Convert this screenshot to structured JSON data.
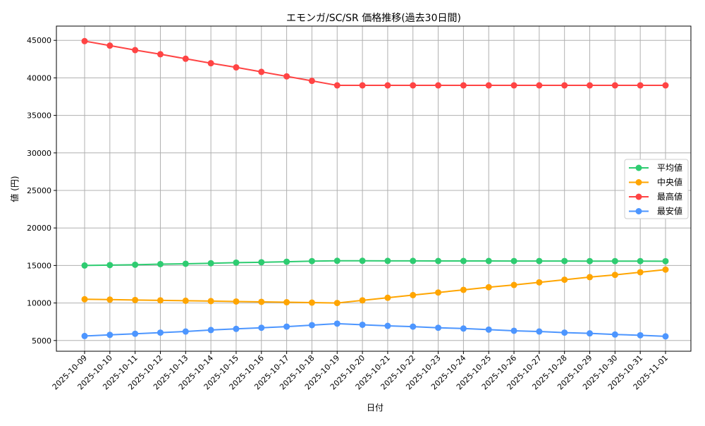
{
  "chart_data": {
    "type": "line",
    "title": "エモンガ/SC/SR 価格推移(過去30日間)",
    "xlabel": "日付",
    "ylabel": "値 (円)",
    "ylim": [
      3570,
      46900
    ],
    "yticks": [
      5000,
      10000,
      15000,
      20000,
      25000,
      30000,
      35000,
      40000,
      45000
    ],
    "grid": true,
    "legend_position": "center-right",
    "x": [
      "2025-10-09",
      "2025-10-10",
      "2025-10-11",
      "2025-10-12",
      "2025-10-13",
      "2025-10-14",
      "2025-10-15",
      "2025-10-16",
      "2025-10-17",
      "2025-10-18",
      "2025-10-19",
      "2025-10-20",
      "2025-10-21",
      "2025-10-22",
      "2025-10-23",
      "2025-10-24",
      "2025-10-25",
      "2025-10-26",
      "2025-10-27",
      "2025-10-28",
      "2025-10-29",
      "2025-10-30",
      "2025-10-31",
      "2025-11-01"
    ],
    "series": [
      {
        "name": "平均値",
        "color": "#2ecc71",
        "values": [
          15000,
          15050,
          15100,
          15180,
          15230,
          15300,
          15380,
          15430,
          15500,
          15580,
          15620,
          15620,
          15610,
          15610,
          15600,
          15600,
          15600,
          15590,
          15590,
          15590,
          15580,
          15580,
          15580,
          15570
        ]
      },
      {
        "name": "中央値",
        "color": "#ffa500",
        "values": [
          10500,
          10450,
          10400,
          10350,
          10300,
          10250,
          10200,
          10150,
          10100,
          10050,
          10000,
          10350,
          10700,
          11050,
          11400,
          11750,
          12100,
          12400,
          12750,
          13100,
          13450,
          13750,
          14100,
          14450
        ]
      },
      {
        "name": "最高値",
        "color": "#ff4444",
        "values": [
          44900,
          44300,
          43700,
          43150,
          42550,
          41950,
          41400,
          40800,
          40200,
          39600,
          39000,
          39000,
          39000,
          39000,
          39000,
          39000,
          39000,
          39000,
          39000,
          39000,
          39000,
          39000,
          39000,
          39000
        ]
      },
      {
        "name": "最安値",
        "color": "#4d96ff",
        "values": [
          5600,
          5750,
          5900,
          6050,
          6200,
          6400,
          6550,
          6700,
          6850,
          7050,
          7250,
          7100,
          6950,
          6850,
          6700,
          6600,
          6450,
          6300,
          6200,
          6050,
          5950,
          5800,
          5700,
          5550
        ]
      }
    ]
  }
}
